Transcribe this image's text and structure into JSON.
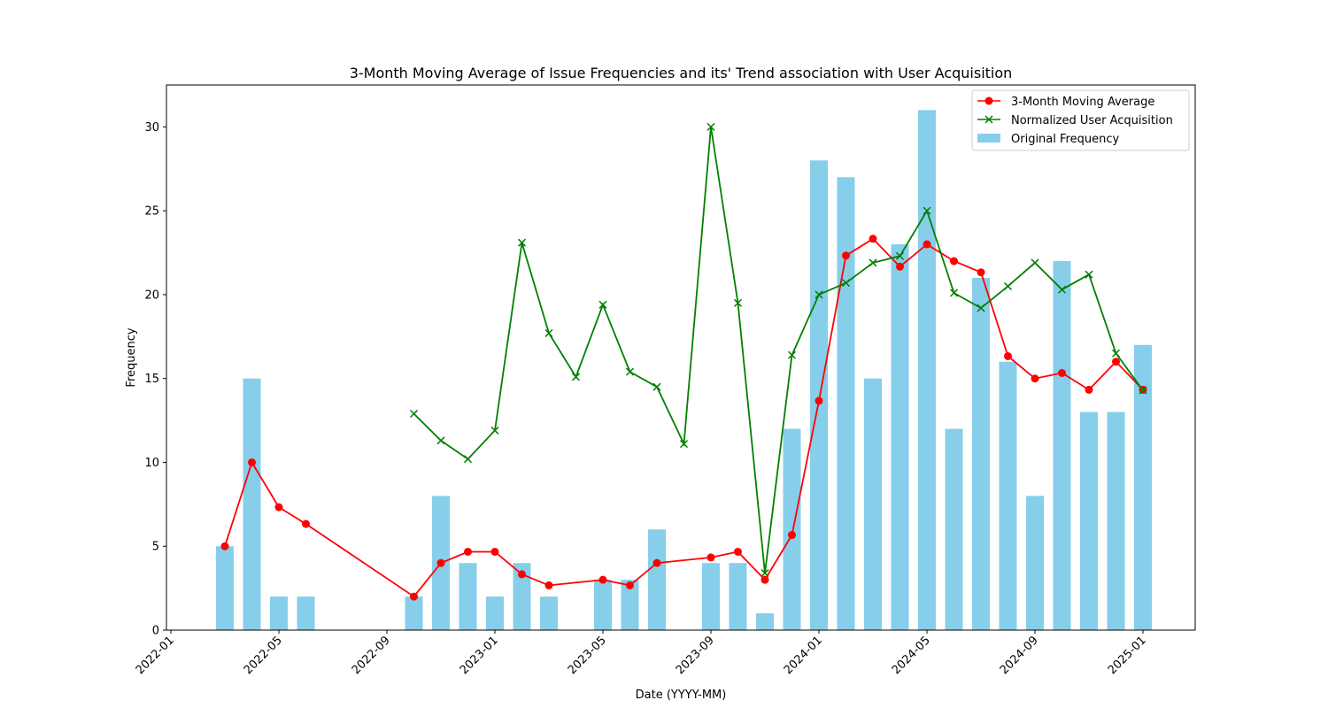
{
  "chart_data": {
    "type": "bar+line",
    "title": "3-Month Moving Average of Issue Frequencies and its' Trend association with User Acquisition",
    "xlabel": "Date (YYYY-MM)",
    "ylabel": "Frequency",
    "ylim": [
      0,
      32.5
    ],
    "y_ticks": [
      0,
      5,
      10,
      15,
      20,
      25,
      30
    ],
    "x_ticks": [
      "2022-01",
      "2022-05",
      "2022-09",
      "2023-01",
      "2023-05",
      "2023-09",
      "2024-01",
      "2024-05",
      "2024-09",
      "2025-01"
    ],
    "legend_position": "top-right",
    "colors": {
      "bar": "#87ceeb",
      "moving_average": "#ff0000",
      "user_acquisition": "#008000"
    },
    "bars": {
      "name": "Original Frequency",
      "x": [
        "2022-03",
        "2022-04",
        "2022-05",
        "2022-06",
        "2022-10",
        "2022-11",
        "2022-12",
        "2023-01",
        "2023-02",
        "2023-03",
        "2023-05",
        "2023-06",
        "2023-07",
        "2023-09",
        "2023-10",
        "2023-11",
        "2023-12",
        "2024-01",
        "2024-02",
        "2024-03",
        "2024-04",
        "2024-05",
        "2024-06",
        "2024-07",
        "2024-08",
        "2024-09",
        "2024-10",
        "2024-11",
        "2024-12",
        "2025-01"
      ],
      "values": [
        5,
        15,
        2,
        2,
        2,
        8,
        4,
        2,
        4,
        2,
        3,
        3,
        6,
        4,
        4,
        1,
        12,
        28,
        27,
        15,
        23,
        31,
        12,
        21,
        16,
        8,
        22,
        13,
        13,
        17
      ]
    },
    "series": [
      {
        "name": "3-Month Moving Average",
        "marker": "circle",
        "x": [
          "2022-03",
          "2022-04",
          "2022-05",
          "2022-06",
          "2022-10",
          "2022-11",
          "2022-12",
          "2023-01",
          "2023-02",
          "2023-03",
          "2023-05",
          "2023-06",
          "2023-07",
          "2023-09",
          "2023-10",
          "2023-11",
          "2023-12",
          "2024-01",
          "2024-02",
          "2024-03",
          "2024-04",
          "2024-05",
          "2024-06",
          "2024-07",
          "2024-08",
          "2024-09",
          "2024-10",
          "2024-11",
          "2024-12",
          "2025-01"
        ],
        "values": [
          5,
          10,
          7.33,
          6.33,
          2,
          4,
          4.67,
          4.67,
          3.33,
          2.67,
          3,
          2.67,
          4,
          4.33,
          4.67,
          3,
          5.67,
          13.67,
          22.33,
          23.33,
          21.67,
          23,
          22,
          21.33,
          16.33,
          15,
          15.33,
          14.33,
          16,
          14.33
        ]
      },
      {
        "name": "Normalized User Acquisition",
        "marker": "x",
        "x": [
          "2022-10",
          "2022-11",
          "2022-12",
          "2023-01",
          "2023-02",
          "2023-03",
          "2023-04",
          "2023-05",
          "2023-06",
          "2023-07",
          "2023-08",
          "2023-09",
          "2023-10",
          "2023-11",
          "2023-12",
          "2024-01",
          "2024-02",
          "2024-03",
          "2024-04",
          "2024-05",
          "2024-06",
          "2024-07",
          "2024-08",
          "2024-09",
          "2024-10",
          "2024-11",
          "2024-12",
          "2025-01"
        ],
        "values": [
          12.9,
          11.3,
          10.2,
          11.9,
          23.1,
          17.7,
          15.1,
          19.4,
          15.4,
          14.5,
          11.1,
          30,
          19.5,
          3.4,
          16.4,
          20,
          20.7,
          21.9,
          22.3,
          25,
          20.1,
          19.2,
          20.5,
          21.9,
          20.3,
          21.2,
          16.5,
          14.3
        ]
      }
    ]
  }
}
